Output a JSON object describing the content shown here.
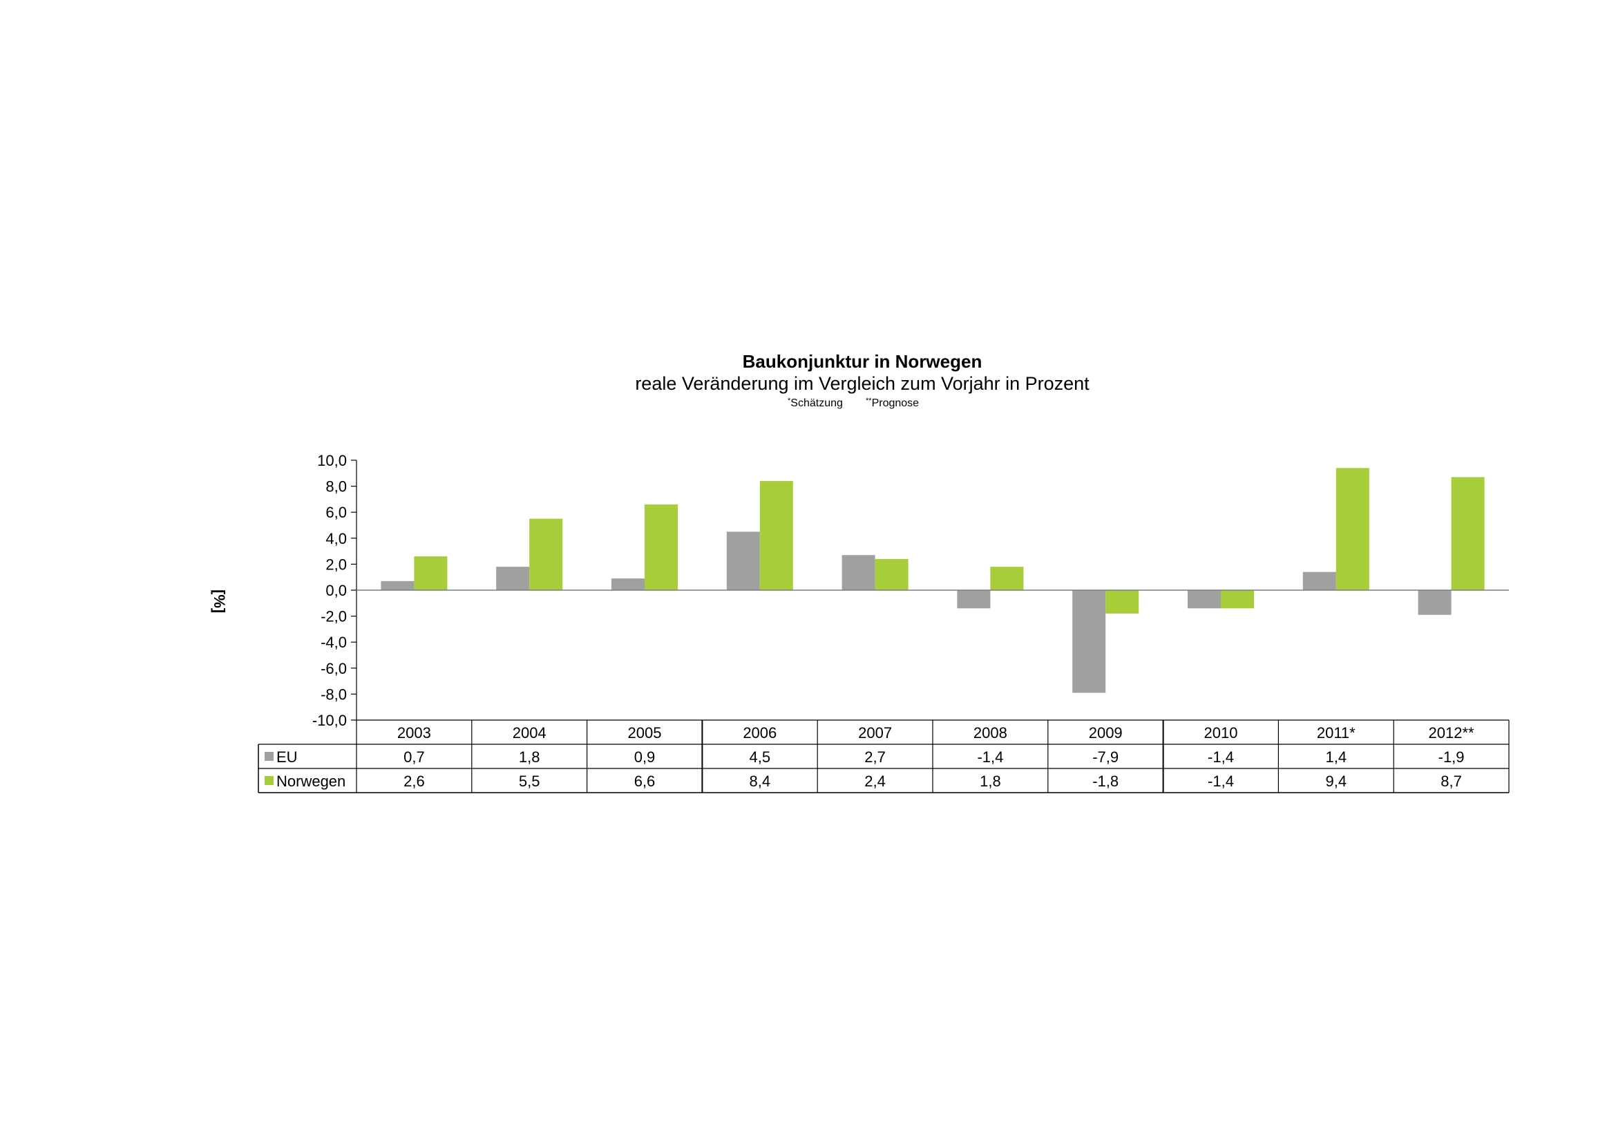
{
  "chart_data": {
    "type": "bar",
    "title": "Baukonjunktur in Norwegen",
    "subtitle": "reale Veränderung im Vergleich zum Vorjahr in Prozent",
    "notes": [
      {
        "mark": "*",
        "text": "Schätzung"
      },
      {
        "mark": "**",
        "text": "Prognose"
      }
    ],
    "ylabel": "[%]",
    "ylim": [
      -10,
      10
    ],
    "ytick_step": 2,
    "ytick_labels": [
      "10,0",
      "8,0",
      "6,0",
      "4,0",
      "2,0",
      "0,0",
      "-2,0",
      "-4,0",
      "-6,0",
      "-8,0",
      "-10,0"
    ],
    "categories": [
      "2003",
      "2004",
      "2005",
      "2006",
      "2007",
      "2008",
      "2009",
      "2010",
      "2011*",
      "2012**"
    ],
    "series": [
      {
        "name": "EU",
        "color": "#a0a0a0",
        "values": [
          0.7,
          1.8,
          0.9,
          4.5,
          2.7,
          -1.4,
          -7.9,
          -1.4,
          1.4,
          -1.9
        ],
        "labels": [
          "0,7",
          "1,8",
          "0,9",
          "4,5",
          "2,7",
          "-1,4",
          "-7,9",
          "-1,4",
          "1,4",
          "-1,9"
        ]
      },
      {
        "name": "Norwegen",
        "color": "#a8cd3a",
        "values": [
          2.6,
          5.5,
          6.6,
          8.4,
          2.4,
          1.8,
          -1.8,
          -1.4,
          9.4,
          8.7
        ],
        "labels": [
          "2,6",
          "5,5",
          "6,6",
          "8,4",
          "2,4",
          "1,8",
          "-1,8",
          "-1,4",
          "9,4",
          "8,7"
        ]
      }
    ],
    "grid": false,
    "legend": "data-table"
  }
}
